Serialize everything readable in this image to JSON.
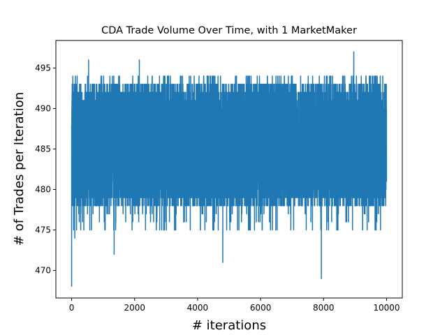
{
  "chart_data": {
    "type": "line",
    "title": "CDA Trade Volume Over Time, with 1 MarketMaker",
    "xlabel": "# iterations",
    "ylabel": "# of Trades per Iteration",
    "xlim": [
      -500,
      10500
    ],
    "ylim": [
      466.6,
      498.4
    ],
    "x_ticks": [
      0,
      2000,
      4000,
      6000,
      8000,
      10000
    ],
    "x_tick_labels": [
      "0",
      "2000",
      "4000",
      "6000",
      "8000",
      "10000"
    ],
    "y_ticks": [
      470,
      475,
      480,
      485,
      490,
      495
    ],
    "y_tick_labels": [
      "470",
      "475",
      "480",
      "485",
      "490",
      "495"
    ],
    "grid": false,
    "legend": "none",
    "series": [
      {
        "color": "#1f77b4",
        "n_points": 10000,
        "typical_range": [
          478,
          493
        ],
        "min": 468,
        "max": 497,
        "notable_points": [
          {
            "x": 0,
            "y": 468
          },
          {
            "x": 20,
            "y": 493
          },
          {
            "x": 100,
            "y": 474
          },
          {
            "x": 540,
            "y": 496
          },
          {
            "x": 1350,
            "y": 472
          },
          {
            "x": 2150,
            "y": 496
          },
          {
            "x": 4800,
            "y": 471
          },
          {
            "x": 7930,
            "y": 469
          },
          {
            "x": 8960,
            "y": 497
          },
          {
            "x": 9998,
            "y": 488
          }
        ]
      }
    ]
  }
}
